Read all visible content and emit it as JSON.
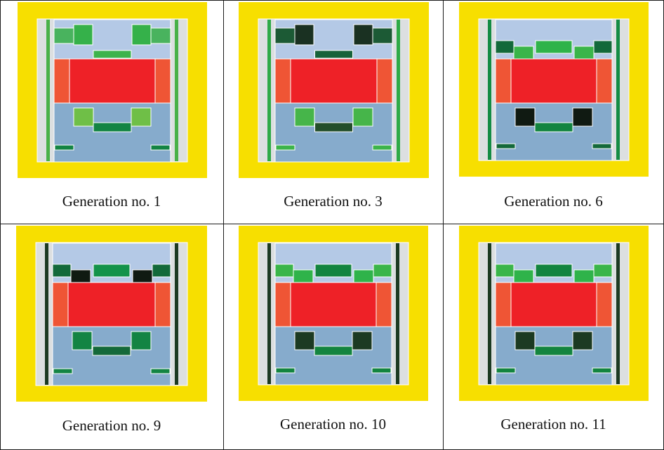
{
  "colors": {
    "frame": "#F7DF00",
    "inner": "#DCDFE0",
    "top_zone": "#B4C9E6",
    "bottom_zone": "#86ABCC",
    "center": "#EE2127",
    "side": "#EF5535",
    "edge": "#FFFFFF"
  },
  "panels": [
    {
      "caption": "Generation no. 1",
      "pillars": "#49B148",
      "top_outer": "#49B35E",
      "top_inner": "#35B14A",
      "top_center": "#3DB34C",
      "bot_block": "#6FBF47",
      "bot_center": "#138443",
      "bot_small": "#138443"
    },
    {
      "caption": "Generation no. 3",
      "pillars": "#2EAA47",
      "top_outer": "#1C5A35",
      "top_inner": "#1A3122",
      "top_center": "#17623A",
      "bot_block": "#46B54A",
      "bot_center": "#244F2B",
      "bot_small": "#3DB44A"
    },
    {
      "caption": "Generation no. 6",
      "pillars": "#148C44",
      "row": [
        "#13693A",
        "#3AB54A",
        "#2FB34A",
        "#3AB54A",
        "#13693A"
      ],
      "bot_block": "#101A12",
      "bot_center": "#13843F",
      "bot_small": "#13693A"
    },
    {
      "caption": "Generation no. 9",
      "pillars": "#1C3A22",
      "row": [
        "#13693A",
        "#101A12",
        "#14934A",
        "#101A12",
        "#13693A"
      ],
      "bot_block": "#138443",
      "bot_center": "#14693A",
      "bot_small": "#138443"
    },
    {
      "caption": "Generation no. 10",
      "pillars": "#1C3A22",
      "row": [
        "#3AB54A",
        "#2FB34A",
        "#13843F",
        "#2FB34A",
        "#3AB54A"
      ],
      "bot_block": "#1C3A22",
      "bot_center": "#13843F",
      "bot_small": "#13843F"
    },
    {
      "caption": "Generation no. 11",
      "pillars": "#1C3A22",
      "row": [
        "#3AB54A",
        "#2FB34A",
        "#13843F",
        "#2FB34A",
        "#3AB54A"
      ],
      "bot_block": "#1C3A22",
      "bot_center": "#13843F",
      "bot_small": "#13843F"
    }
  ]
}
